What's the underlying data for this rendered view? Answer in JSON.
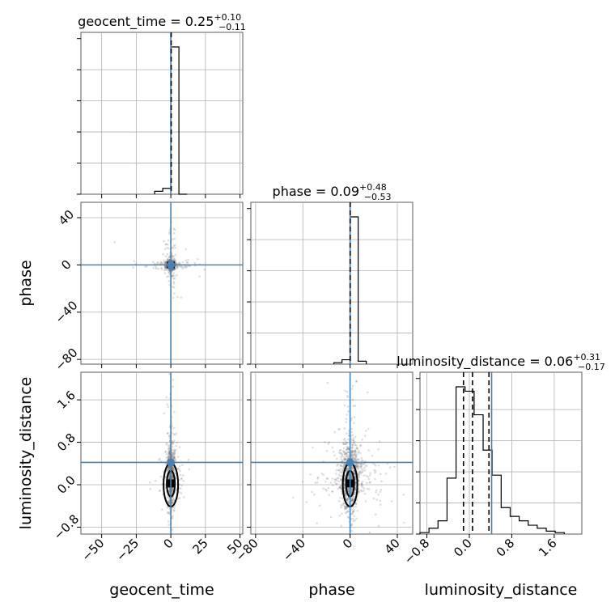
{
  "chart_data": {
    "type": "scatter",
    "kind": "corner-plot",
    "parameters": [
      "geocent_time",
      "phase",
      "luminosity_distance"
    ],
    "axis_labels": {
      "geocent_time": "geocent_time",
      "phase": "phase",
      "luminosity_distance": "luminosity_distance"
    },
    "titles": [
      {
        "param": "geocent_time",
        "text": "geocent_time = 0.25",
        "sup": "+0.10",
        "sub": "−0.11"
      },
      {
        "param": "phase",
        "text": "phase = 0.09",
        "sup": "+0.48",
        "sub": "−0.53"
      },
      {
        "param": "luminosity_distance",
        "text": "luminosity_distance = 0.06",
        "sup": "+0.31",
        "sub": "−0.17"
      }
    ],
    "ranges": {
      "geocent_time": [
        -65,
        52
      ],
      "phase": [
        -84,
        53
      ],
      "luminosity_distance": [
        -0.93,
        2.12
      ]
    },
    "ticks": {
      "geocent_time": {
        "values": [
          -50,
          -25,
          0,
          25,
          50
        ],
        "labels": [
          "−50",
          "−25",
          "0",
          "25",
          "50"
        ]
      },
      "phase": {
        "values": [
          -80,
          -40,
          0,
          40
        ],
        "labels": [
          "−80",
          "−40",
          "0",
          "40"
        ]
      },
      "luminosity_distance": {
        "values": [
          -0.8,
          0.0,
          0.8,
          1.6
        ],
        "labels": [
          "−0.8",
          "0.0",
          "0.8",
          "1.6"
        ]
      }
    },
    "truth": {
      "geocent_time": 0.0,
      "phase": 0.0,
      "luminosity_distance": 0.42
    },
    "quantiles": {
      "luminosity_distance": [
        -0.11,
        0.06,
        0.37
      ]
    },
    "hist": {
      "geocent_time": {
        "edges": [
          -11.7,
          -5.85,
          0,
          5.85,
          11.7
        ],
        "counts": [
          0.02,
          0.04,
          1.0,
          0.0
        ]
      },
      "phase": {
        "edges": [
          -13.7,
          -6.85,
          0,
          6.85,
          13.7
        ],
        "counts": [
          0.01,
          0.03,
          1.0,
          0.02
        ]
      },
      "luminosity_distance": {
        "edges": [
          -0.93,
          -0.76,
          -0.59,
          -0.42,
          -0.25,
          -0.08,
          0.09,
          0.26,
          0.43,
          0.6,
          0.77,
          0.94,
          1.11,
          1.28,
          1.45,
          1.62,
          1.79
        ],
        "counts": [
          0.01,
          0.04,
          0.09,
          0.38,
          1.0,
          0.97,
          0.81,
          0.57,
          0.4,
          0.18,
          0.12,
          0.09,
          0.06,
          0.04,
          0.02,
          0.01
        ]
      }
    },
    "grid": true
  }
}
